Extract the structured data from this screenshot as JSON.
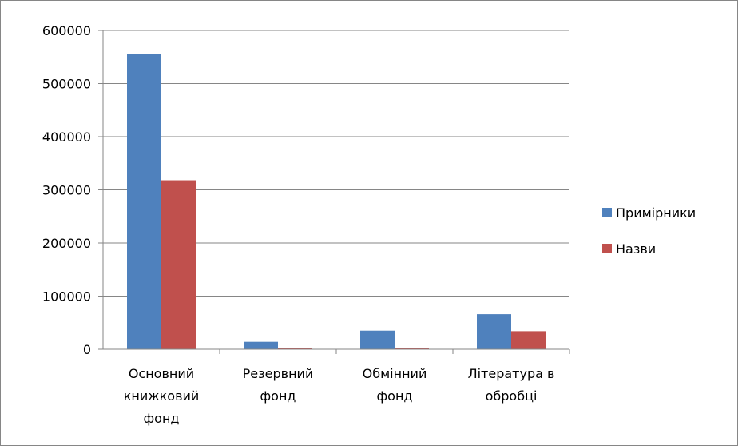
{
  "chart_data": {
    "type": "bar",
    "categories": [
      [
        "Основний",
        "книжковий",
        "фонд"
      ],
      [
        "Резервний",
        "фонд"
      ],
      [
        "Обмінний",
        "фонд"
      ],
      [
        "Література в",
        "обробці"
      ]
    ],
    "series": [
      {
        "name": "Примірники",
        "color": "#4F81BD",
        "values": [
          556000,
          14000,
          35000,
          66000
        ]
      },
      {
        "name": "Назви",
        "color": "#C0504D",
        "values": [
          318000,
          3000,
          2000,
          34000
        ]
      }
    ],
    "ylim": [
      0,
      600000
    ],
    "yticks": [
      "0",
      "100000",
      "200000",
      "300000",
      "400000",
      "500000",
      "600000"
    ],
    "title": "",
    "xlabel": "",
    "ylabel": "",
    "grid": true,
    "legend": "right"
  }
}
